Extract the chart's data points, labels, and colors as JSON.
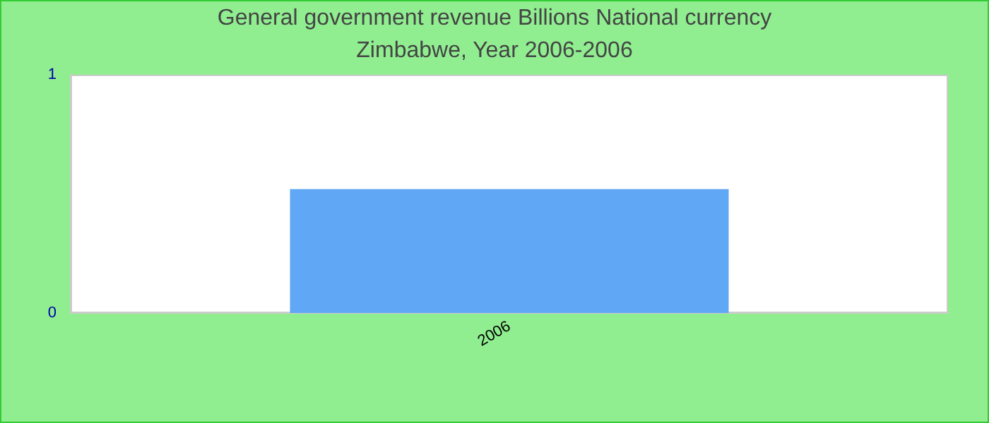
{
  "chart_data": {
    "type": "bar",
    "title": "General government revenue Billions National currency",
    "subtitle": "Zimbabwe, Year 2006-2006",
    "categories": [
      "2006"
    ],
    "values": [
      0.52
    ],
    "color": "#60a8f5",
    "ylim": [
      0,
      1
    ],
    "yticks": [
      0,
      1
    ],
    "grid": false,
    "legend": false
  }
}
